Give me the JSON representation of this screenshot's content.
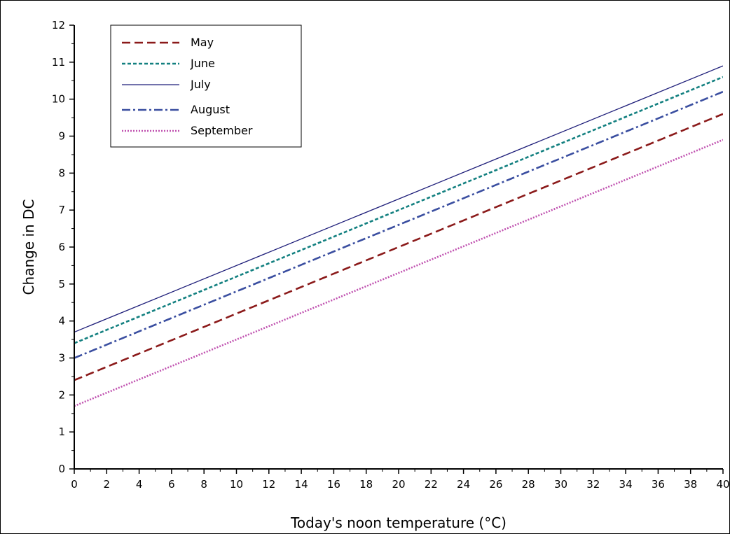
{
  "chart_data": {
    "type": "line",
    "xlabel": "Today's noon temperature (°C)",
    "ylabel": "Change in DC",
    "xlim": [
      0,
      40
    ],
    "ylim": [
      0,
      12
    ],
    "xticks": [
      0,
      2,
      4,
      6,
      8,
      10,
      12,
      14,
      16,
      18,
      20,
      22,
      24,
      26,
      28,
      30,
      32,
      34,
      36,
      38,
      40
    ],
    "yticks": [
      0,
      1,
      2,
      3,
      4,
      5,
      6,
      7,
      8,
      9,
      10,
      11,
      12
    ],
    "grid": false,
    "legend_position": "top-left",
    "series": [
      {
        "name": "May",
        "color": "#8b1a1a",
        "dash": "dashed",
        "x": [
          0,
          40
        ],
        "y": [
          2.4,
          9.6
        ]
      },
      {
        "name": "June",
        "color": "#138080",
        "dash": "short-dashed",
        "x": [
          0,
          40
        ],
        "y": [
          3.4,
          10.6
        ]
      },
      {
        "name": "July",
        "color": "#1f1f7a",
        "dash": "solid",
        "x": [
          0,
          40
        ],
        "y": [
          3.7,
          10.9
        ]
      },
      {
        "name": "August",
        "color": "#3a4ea0",
        "dash": "dash-dot",
        "x": [
          0,
          40
        ],
        "y": [
          3.0,
          10.2
        ]
      },
      {
        "name": "September",
        "color": "#c052b0",
        "dash": "dotted",
        "x": [
          0,
          40
        ],
        "y": [
          1.7,
          8.9
        ]
      }
    ]
  }
}
